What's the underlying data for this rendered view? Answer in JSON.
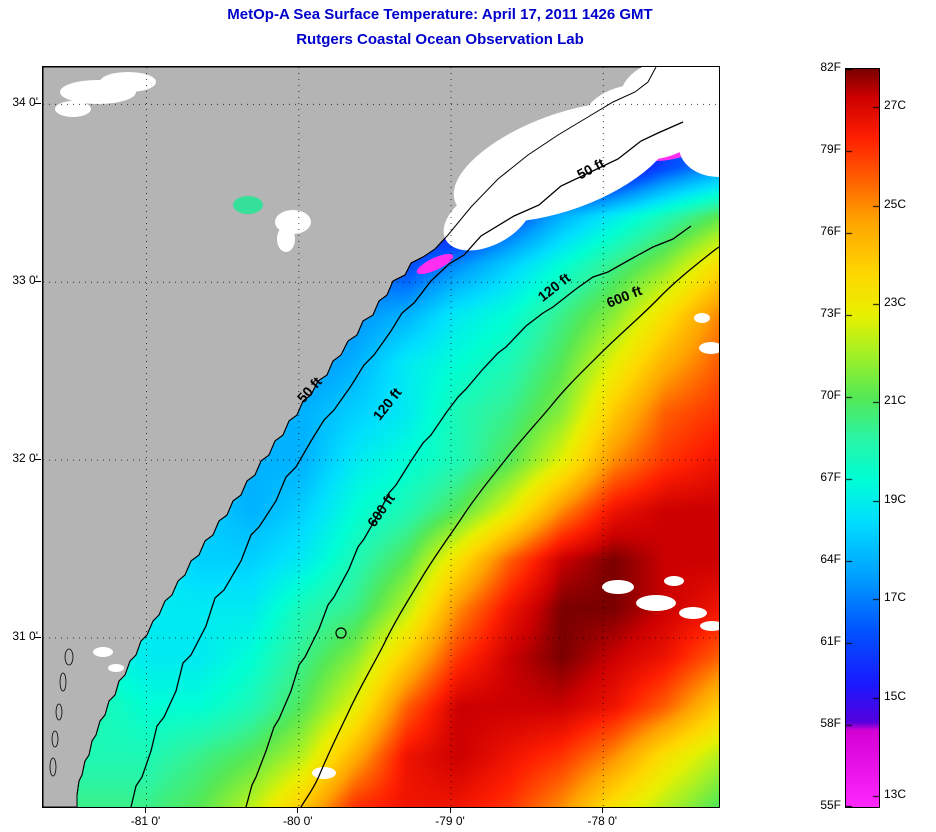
{
  "header": {
    "title_line1": "MetOp-A Sea Surface Temperature:  April 17, 2011 1426 GMT",
    "title_line2": "Rutgers Coastal Ocean Observation Lab",
    "title_color": "#0000cc"
  },
  "chart_data": {
    "type": "heatmap",
    "title": "MetOp-A Sea Surface Temperature: April 17, 2011 1426 GMT",
    "subtitle": "Rutgers Coastal Ocean Observation Lab",
    "units": "F",
    "xlim": [
      -81.68,
      -77.24
    ],
    "ylim": [
      30.05,
      34.21
    ],
    "grid_on": true,
    "legend_position": "right-colorbar",
    "lon_ticks": [
      {
        "value": -81,
        "label": "-81 0'"
      },
      {
        "value": -80,
        "label": "-80 0'"
      },
      {
        "value": -79,
        "label": "-79 0'"
      },
      {
        "value": -78,
        "label": "-78 0'"
      }
    ],
    "lat_ticks": [
      {
        "value": 34,
        "label": "34 0'"
      },
      {
        "value": 33,
        "label": "33 0'"
      },
      {
        "value": 32,
        "label": "32 0'"
      },
      {
        "value": 31,
        "label": "31 0'"
      }
    ],
    "sst_grid": {
      "rows": 16,
      "cols": 14,
      "units": "F",
      "values": [
        [
          66,
          66,
          66,
          66,
          66,
          65,
          64,
          63,
          62,
          61,
          60,
          59,
          59,
          60
        ],
        [
          66,
          66,
          66,
          66,
          65,
          64,
          63,
          62,
          60,
          58,
          57,
          58,
          60,
          62
        ],
        [
          66,
          66,
          66,
          66,
          65,
          64,
          63,
          61,
          59,
          57,
          56,
          58,
          61,
          63
        ],
        [
          66,
          66,
          66,
          66,
          65,
          64,
          62,
          60,
          58,
          61,
          64,
          66,
          68,
          70
        ],
        [
          65,
          65,
          65,
          65,
          65,
          64,
          62,
          61,
          63,
          65,
          67,
          69,
          71,
          74
        ],
        [
          65,
          65,
          65,
          65,
          64,
          63,
          63,
          64,
          66,
          67,
          69,
          71,
          74,
          77
        ],
        [
          65,
          65,
          65,
          65,
          64,
          63,
          64,
          66,
          67,
          68,
          70,
          73,
          76,
          78
        ],
        [
          65,
          65,
          65,
          64,
          64,
          64,
          65,
          66,
          68,
          69,
          71,
          75,
          78,
          79
        ],
        [
          65,
          65,
          65,
          64,
          64,
          64,
          66,
          67,
          68,
          70,
          73,
          77,
          79,
          80
        ],
        [
          66,
          66,
          65,
          65,
          64,
          65,
          67,
          68,
          70,
          73,
          77,
          80,
          81,
          81
        ],
        [
          66,
          66,
          66,
          65,
          65,
          66,
          68,
          70,
          74,
          78,
          81,
          82,
          81,
          81
        ],
        [
          67,
          67,
          66,
          66,
          66,
          68,
          69,
          72,
          77,
          80,
          82,
          82,
          81,
          80
        ],
        [
          67,
          67,
          66,
          66,
          67,
          69,
          71,
          75,
          79,
          81,
          82,
          81,
          80,
          78
        ],
        [
          68,
          68,
          67,
          67,
          68,
          70,
          73,
          78,
          81,
          81,
          81,
          80,
          78,
          75
        ],
        [
          68,
          68,
          68,
          69,
          70,
          72,
          76,
          80,
          81,
          80,
          79,
          77,
          74,
          72
        ],
        [
          69,
          69,
          69,
          70,
          72,
          75,
          79,
          80,
          80,
          79,
          77,
          74,
          72,
          70
        ]
      ]
    },
    "colormap_stops": [
      {
        "f": 55.0,
        "color": "#ff28ff"
      },
      {
        "f": 57.8,
        "color": "#d400d4"
      },
      {
        "f": 58.1,
        "color": "#5500dd"
      },
      {
        "f": 59.5,
        "color": "#1a1aff"
      },
      {
        "f": 61.5,
        "color": "#0055ff"
      },
      {
        "f": 63.5,
        "color": "#00a2ff"
      },
      {
        "f": 65.5,
        "color": "#00e0ff"
      },
      {
        "f": 67.0,
        "color": "#00ffd5"
      },
      {
        "f": 68.5,
        "color": "#2bf5a5"
      },
      {
        "f": 70.0,
        "color": "#55e855"
      },
      {
        "f": 71.5,
        "color": "#a0f028"
      },
      {
        "f": 73.0,
        "color": "#e8f000"
      },
      {
        "f": 74.5,
        "color": "#ffd800"
      },
      {
        "f": 76.5,
        "color": "#ffa200"
      },
      {
        "f": 78.0,
        "color": "#ff5e00"
      },
      {
        "f": 79.5,
        "color": "#ff1e00"
      },
      {
        "f": 81.0,
        "color": "#cc0000"
      },
      {
        "f": 82.0,
        "color": "#7a0000"
      }
    ],
    "contour_labels": [
      {
        "text": "50 ft"
      },
      {
        "text": "120 ft"
      },
      {
        "text": "600 ft"
      },
      {
        "text": "50 ft"
      },
      {
        "text": "120 ft"
      },
      {
        "text": "600 ft"
      }
    ],
    "colorbar": {
      "range_f": [
        55,
        82
      ],
      "fahrenheit_ticks": [
        {
          "value": 82,
          "label": "82F"
        },
        {
          "value": 79,
          "label": "79F"
        },
        {
          "value": 76,
          "label": "76F"
        },
        {
          "value": 73,
          "label": "73F"
        },
        {
          "value": 70,
          "label": "70F"
        },
        {
          "value": 67,
          "label": "67F"
        },
        {
          "value": 64,
          "label": "64F"
        },
        {
          "value": 61,
          "label": "61F"
        },
        {
          "value": 58,
          "label": "58F"
        },
        {
          "value": 55,
          "label": "55F"
        }
      ],
      "celsius_ticks": [
        {
          "value": 27,
          "label": "27C"
        },
        {
          "value": 25,
          "label": "25C"
        },
        {
          "value": 23,
          "label": "23C"
        },
        {
          "value": 21,
          "label": "21C"
        },
        {
          "value": 19,
          "label": "19C"
        },
        {
          "value": 17,
          "label": "17C"
        },
        {
          "value": 15,
          "label": "15C"
        },
        {
          "value": 13,
          "label": "13C"
        }
      ]
    },
    "land_color": "#b4b4b4",
    "cloud_color": "#ffffff",
    "cold_patch_color": "#ff2ef0"
  }
}
